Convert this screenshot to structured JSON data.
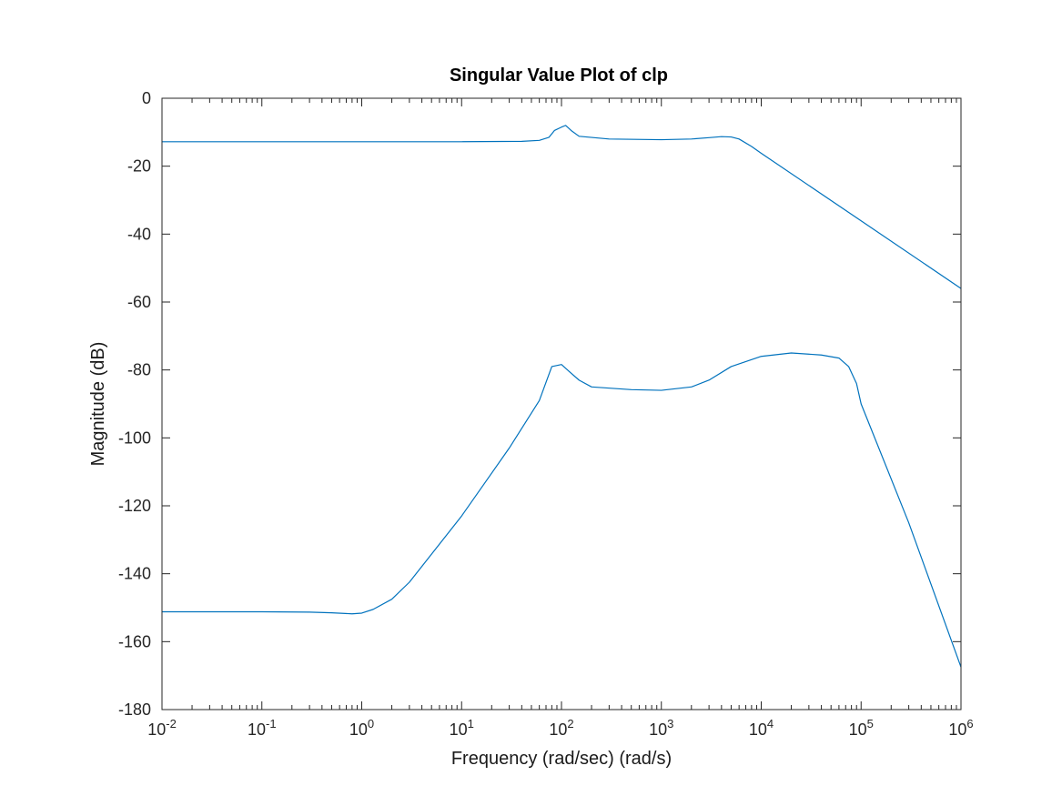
{
  "chart_data": {
    "type": "line",
    "title": "Singular Value Plot of clp",
    "xlabel": "Frequency (rad/sec) (rad/s)",
    "ylabel": "Magnitude (dB)",
    "xscale": "log",
    "xlim": [
      0.01,
      1000000
    ],
    "ylim": [
      -180,
      0
    ],
    "grid": false,
    "line_color": "#0072BD",
    "x_ticks": [
      {
        "base": "10",
        "exp": "-2",
        "value": 0.01
      },
      {
        "base": "10",
        "exp": "-1",
        "value": 0.1
      },
      {
        "base": "10",
        "exp": "0",
        "value": 1
      },
      {
        "base": "10",
        "exp": "1",
        "value": 10
      },
      {
        "base": "10",
        "exp": "2",
        "value": 100
      },
      {
        "base": "10",
        "exp": "3",
        "value": 1000
      },
      {
        "base": "10",
        "exp": "4",
        "value": 10000
      },
      {
        "base": "10",
        "exp": "5",
        "value": 100000
      },
      {
        "base": "10",
        "exp": "6",
        "value": 1000000
      }
    ],
    "y_ticks": [
      "0",
      "-20",
      "-40",
      "-60",
      "-80",
      "-100",
      "-120",
      "-140",
      "-160",
      "-180"
    ],
    "series": [
      {
        "x": [
          0.01,
          0.1,
          1,
          10,
          40,
          60,
          75,
          85,
          100,
          110,
          125,
          150,
          300,
          1000,
          2000,
          3000,
          4000,
          5000,
          6000,
          8000,
          10000,
          100000,
          1000000
        ],
        "y": [
          -12.8,
          -12.8,
          -12.8,
          -12.8,
          -12.7,
          -12.4,
          -11.5,
          -9.5,
          -8.5,
          -8.0,
          -9.5,
          -11.2,
          -12.0,
          -12.2,
          -12.0,
          -11.6,
          -11.3,
          -11.4,
          -12.0,
          -14.2,
          -16.2,
          -36.1,
          -56.0
        ]
      },
      {
        "x": [
          0.01,
          0.1,
          0.3,
          0.5,
          0.8,
          1,
          1.3,
          2,
          3,
          10,
          30,
          60,
          80,
          100,
          120,
          150,
          200,
          500,
          1000,
          2000,
          3000,
          5000,
          10000,
          20000,
          40000,
          60000,
          75000,
          90000,
          100000,
          300000,
          1000000
        ],
        "y": [
          -151.2,
          -151.2,
          -151.3,
          -151.5,
          -151.8,
          -151.6,
          -150.5,
          -147.5,
          -142.5,
          -123.0,
          -103.0,
          -89.0,
          -79.0,
          -78.4,
          -80.5,
          -83.0,
          -85.0,
          -85.8,
          -86.0,
          -85.0,
          -83.0,
          -79.0,
          -76.0,
          -75.0,
          -75.6,
          -76.5,
          -79.0,
          -84.0,
          -90.0,
          -125.0,
          -167.5
        ]
      }
    ]
  }
}
